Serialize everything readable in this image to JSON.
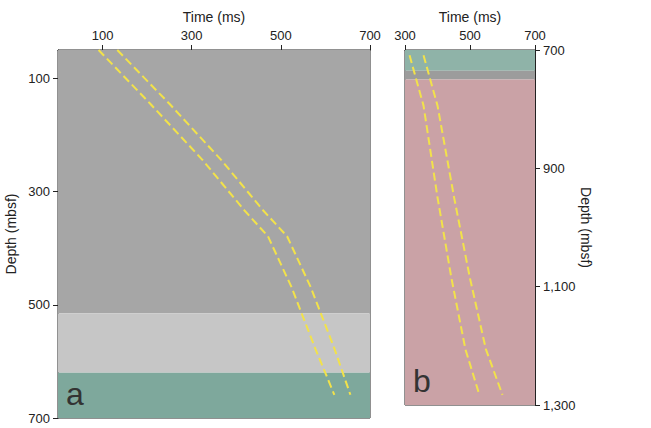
{
  "chart_data": [
    {
      "type": "line",
      "panel_label": "a",
      "x_label": "Time (ms)",
      "y_label": "Depth (mbsf)",
      "xlim": [
        0,
        700
      ],
      "xticks": [
        100,
        300,
        500,
        700
      ],
      "ylim": [
        50,
        700
      ],
      "yticks": [
        100,
        300,
        500,
        700
      ],
      "grid": false,
      "bands": [
        {
          "from": 50,
          "to": 515,
          "color": "#a6a6a6"
        },
        {
          "from": 515,
          "to": 620,
          "color": "#c6c6c6"
        },
        {
          "from": 620,
          "to": 700,
          "color": "#7ea89c"
        }
      ],
      "series": [
        {
          "color": "#f2e24a",
          "line_style": "dashed",
          "x": [
            91,
            207,
            324,
            419,
            471,
            524,
            577,
            620
          ],
          "values": [
            50,
            145,
            244,
            334,
            379,
            469,
            577,
            659
          ]
        },
        {
          "color": "#f2e24a",
          "line_style": "dashed",
          "x": [
            133,
            250,
            366,
            461,
            514,
            567,
            620,
            656
          ],
          "values": [
            50,
            145,
            244,
            334,
            379,
            469,
            577,
            659
          ]
        }
      ]
    },
    {
      "type": "line",
      "panel_label": "b",
      "x_label": "Time (ms)",
      "y_label": "Depth (mbsf)",
      "xlim": [
        300,
        700
      ],
      "xticks": [
        300,
        500,
        700
      ],
      "ylim": [
        700,
        1300
      ],
      "yticks": [
        700,
        900,
        1100,
        1300
      ],
      "grid": false,
      "bands": [
        {
          "from": 700,
          "to": 735,
          "color": "#8fb3a8"
        },
        {
          "from": 735,
          "to": 750,
          "color": "#9c9c9c"
        },
        {
          "from": 750,
          "to": 1300,
          "color": "#caa2a6"
        }
      ],
      "series": [
        {
          "color": "#f2e24a",
          "line_style": "dashed",
          "x": [
            314,
            357,
            400,
            443,
            486,
            529
          ],
          "values": [
            709,
            794,
            949,
            1086,
            1206,
            1283
          ]
        },
        {
          "color": "#f2e24a",
          "line_style": "dashed",
          "x": [
            357,
            400,
            451,
            500,
            549,
            600
          ],
          "values": [
            709,
            794,
            949,
            1086,
            1206,
            1283
          ]
        }
      ]
    }
  ]
}
